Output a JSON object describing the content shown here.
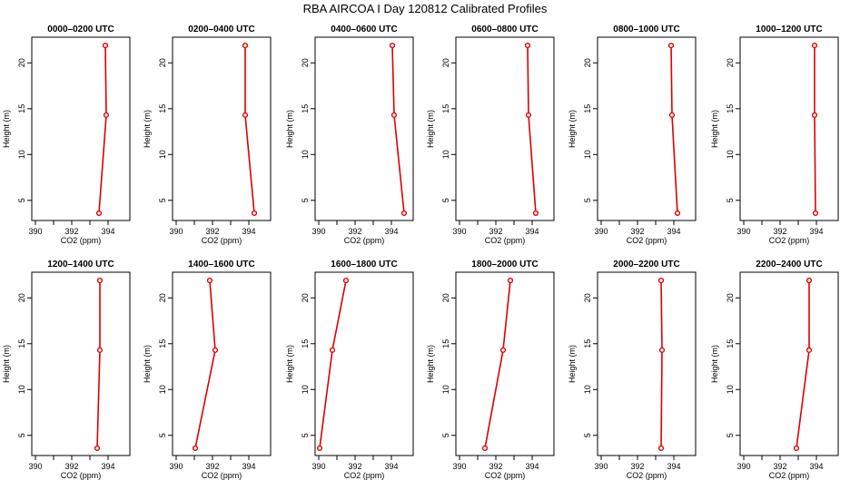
{
  "figure": {
    "title": "RBA AIRCOA I  Day 120812  Calibrated Profiles"
  },
  "chart_data": [
    {
      "type": "line",
      "title": "0000–0200 UTC",
      "xlabel": "CO2 (ppm)",
      "ylabel": "Height (m)",
      "xlim": [
        389.8,
        395.2
      ],
      "ylim": [
        2.8,
        22.8
      ],
      "xticks": [
        390,
        392,
        394
      ],
      "yticks": [
        5,
        10,
        15,
        20
      ],
      "color": "#dd0000",
      "series": [
        {
          "x": [
            393.5,
            393.9,
            393.85
          ],
          "y": [
            3.6,
            14.3,
            21.9
          ]
        }
      ]
    },
    {
      "type": "line",
      "title": "0200–0400 UTC",
      "xlabel": "CO2 (ppm)",
      "ylabel": "Height (m)",
      "xlim": [
        389.8,
        395.2
      ],
      "ylim": [
        2.8,
        22.8
      ],
      "xticks": [
        390,
        392,
        394
      ],
      "yticks": [
        5,
        10,
        15,
        20
      ],
      "color": "#dd0000",
      "series": [
        {
          "x": [
            394.3,
            393.8,
            393.8
          ],
          "y": [
            3.6,
            14.3,
            21.9
          ]
        }
      ]
    },
    {
      "type": "line",
      "title": "0400–0600 UTC",
      "xlabel": "CO2 (ppm)",
      "ylabel": "Height (m)",
      "xlim": [
        389.8,
        395.2
      ],
      "ylim": [
        2.8,
        22.8
      ],
      "xticks": [
        390,
        392,
        394
      ],
      "yticks": [
        5,
        10,
        15,
        20
      ],
      "color": "#dd0000",
      "series": [
        {
          "x": [
            394.7,
            394.15,
            394.05
          ],
          "y": [
            3.6,
            14.3,
            21.9
          ]
        }
      ]
    },
    {
      "type": "line",
      "title": "0600–0800 UTC",
      "xlabel": "CO2 (ppm)",
      "ylabel": "Height (m)",
      "xlim": [
        389.8,
        395.2
      ],
      "ylim": [
        2.8,
        22.8
      ],
      "xticks": [
        390,
        392,
        394
      ],
      "yticks": [
        5,
        10,
        15,
        20
      ],
      "color": "#dd0000",
      "series": [
        {
          "x": [
            394.2,
            393.8,
            393.75
          ],
          "y": [
            3.6,
            14.3,
            21.9
          ]
        }
      ]
    },
    {
      "type": "line",
      "title": "0800–1000 UTC",
      "xlabel": "CO2 (ppm)",
      "ylabel": "Height (m)",
      "xlim": [
        389.8,
        395.2
      ],
      "ylim": [
        2.8,
        22.8
      ],
      "xticks": [
        390,
        392,
        394
      ],
      "yticks": [
        5,
        10,
        15,
        20
      ],
      "color": "#dd0000",
      "series": [
        {
          "x": [
            394.2,
            393.9,
            393.85
          ],
          "y": [
            3.6,
            14.3,
            21.9
          ]
        }
      ]
    },
    {
      "type": "line",
      "title": "1000–1200 UTC",
      "xlabel": "CO2 (ppm)",
      "ylabel": "Height (m)",
      "xlim": [
        389.8,
        395.2
      ],
      "ylim": [
        2.8,
        22.8
      ],
      "xticks": [
        390,
        392,
        394
      ],
      "yticks": [
        5,
        10,
        15,
        20
      ],
      "color": "#dd0000",
      "series": [
        {
          "x": [
            393.95,
            393.9,
            393.9
          ],
          "y": [
            3.6,
            14.3,
            21.9
          ]
        }
      ]
    },
    {
      "type": "line",
      "title": "1200–1400 UTC",
      "xlabel": "CO2 (ppm)",
      "ylabel": "Height (m)",
      "xlim": [
        389.8,
        395.2
      ],
      "ylim": [
        2.8,
        22.8
      ],
      "xticks": [
        390,
        392,
        394
      ],
      "yticks": [
        5,
        10,
        15,
        20
      ],
      "color": "#dd0000",
      "series": [
        {
          "x": [
            393.4,
            393.55,
            393.55
          ],
          "y": [
            3.6,
            14.3,
            21.9
          ]
        }
      ]
    },
    {
      "type": "line",
      "title": "1400–1600 UTC",
      "xlabel": "CO2 (ppm)",
      "ylabel": "Height (m)",
      "xlim": [
        389.8,
        395.2
      ],
      "ylim": [
        2.8,
        22.8
      ],
      "xticks": [
        390,
        392,
        394
      ],
      "yticks": [
        5,
        10,
        15,
        20
      ],
      "color": "#dd0000",
      "series": [
        {
          "x": [
            391.05,
            392.15,
            391.85
          ],
          "y": [
            3.6,
            14.3,
            21.9
          ]
        }
      ]
    },
    {
      "type": "line",
      "title": "1600–1800 UTC",
      "xlabel": "CO2 (ppm)",
      "ylabel": "Height (m)",
      "xlim": [
        389.8,
        395.2
      ],
      "ylim": [
        2.8,
        22.8
      ],
      "xticks": [
        390,
        392,
        394
      ],
      "yticks": [
        5,
        10,
        15,
        20
      ],
      "color": "#dd0000",
      "series": [
        {
          "x": [
            390.05,
            390.75,
            391.5
          ],
          "y": [
            3.6,
            14.3,
            21.9
          ]
        }
      ]
    },
    {
      "type": "line",
      "title": "1800–2000 UTC",
      "xlabel": "CO2 (ppm)",
      "ylabel": "Height (m)",
      "xlim": [
        389.8,
        395.2
      ],
      "ylim": [
        2.8,
        22.8
      ],
      "xticks": [
        390,
        392,
        394
      ],
      "yticks": [
        5,
        10,
        15,
        20
      ],
      "color": "#dd0000",
      "series": [
        {
          "x": [
            391.4,
            392.4,
            392.8
          ],
          "y": [
            3.6,
            14.3,
            21.9
          ]
        }
      ]
    },
    {
      "type": "line",
      "title": "2000–2200 UTC",
      "xlabel": "CO2 (ppm)",
      "ylabel": "Height (m)",
      "xlim": [
        389.8,
        395.2
      ],
      "ylim": [
        2.8,
        22.8
      ],
      "xticks": [
        390,
        392,
        394
      ],
      "yticks": [
        5,
        10,
        15,
        20
      ],
      "color": "#dd0000",
      "series": [
        {
          "x": [
            393.3,
            393.35,
            393.3
          ],
          "y": [
            3.6,
            14.3,
            21.9
          ]
        }
      ]
    },
    {
      "type": "line",
      "title": "2200–2400 UTC",
      "xlabel": "CO2 (ppm)",
      "ylabel": "Height (m)",
      "xlim": [
        389.8,
        395.2
      ],
      "ylim": [
        2.8,
        22.8
      ],
      "xticks": [
        390,
        392,
        394
      ],
      "yticks": [
        5,
        10,
        15,
        20
      ],
      "color": "#dd0000",
      "series": [
        {
          "x": [
            392.9,
            393.6,
            393.6
          ],
          "y": [
            3.6,
            14.3,
            21.9
          ]
        }
      ]
    }
  ]
}
